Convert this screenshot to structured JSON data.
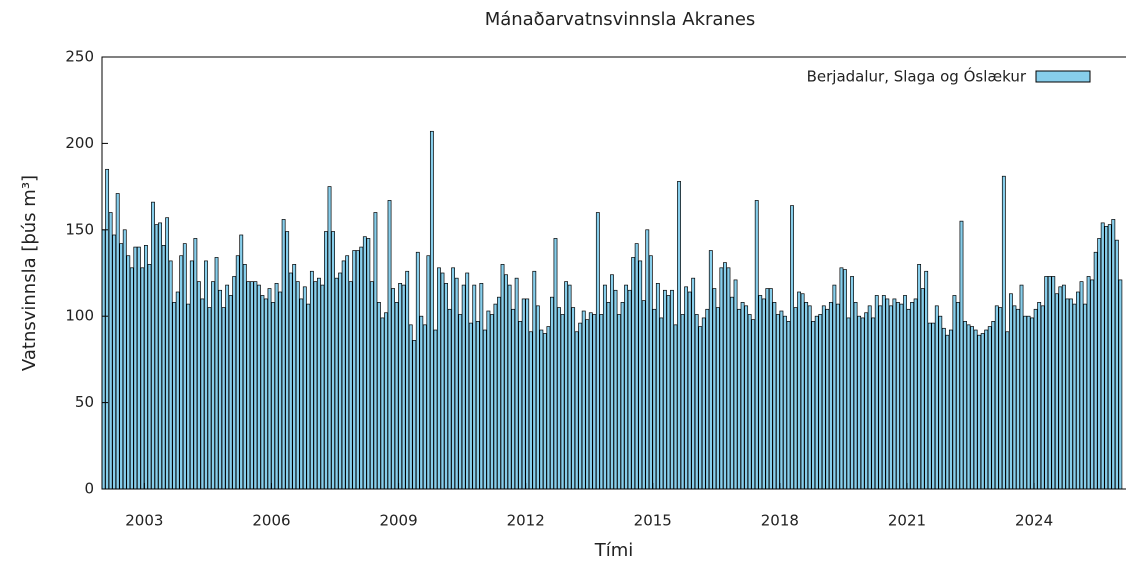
{
  "chart_data": {
    "type": "bar",
    "title": "Mánaðarvatnsvinnsla Akranes",
    "x_label": "Tími",
    "y_label": "Vatnsvinnsla [þús m³]",
    "xlim": [
      2002,
      2026.17
    ],
    "xticks": [
      2003,
      2006,
      2009,
      2012,
      2015,
      2018,
      2021,
      2024
    ],
    "ylim": [
      0,
      250
    ],
    "yticks": [
      0,
      50,
      100,
      150,
      200,
      250
    ],
    "legend": "top-right",
    "x": [
      2002,
      2002.083,
      2002.167,
      2002.25,
      2002.333,
      2002.417,
      2002.5,
      2002.583,
      2002.667,
      2002.75,
      2002.833,
      2002.917,
      2003,
      2003.083,
      2003.167,
      2003.25,
      2003.333,
      2003.417,
      2003.5,
      2003.583,
      2003.667,
      2003.75,
      2003.833,
      2003.917,
      2004,
      2004.083,
      2004.167,
      2004.25,
      2004.333,
      2004.417,
      2004.5,
      2004.583,
      2004.667,
      2004.75,
      2004.833,
      2004.917,
      2005,
      2005.083,
      2005.167,
      2005.25,
      2005.333,
      2005.417,
      2005.5,
      2005.583,
      2005.667,
      2005.75,
      2005.833,
      2005.917,
      2006,
      2006.083,
      2006.167,
      2006.25,
      2006.333,
      2006.417,
      2006.5,
      2006.583,
      2006.667,
      2006.75,
      2006.833,
      2006.917,
      2007,
      2007.083,
      2007.167,
      2007.25,
      2007.333,
      2007.417,
      2007.5,
      2007.583,
      2007.667,
      2007.75,
      2007.833,
      2007.917,
      2008,
      2008.083,
      2008.167,
      2008.25,
      2008.333,
      2008.417,
      2008.5,
      2008.583,
      2008.667,
      2008.75,
      2008.833,
      2008.917,
      2009,
      2009.083,
      2009.167,
      2009.25,
      2009.333,
      2009.417,
      2009.5,
      2009.583,
      2009.667,
      2009.75,
      2009.833,
      2009.917,
      2010,
      2010.083,
      2010.167,
      2010.25,
      2010.333,
      2010.417,
      2010.5,
      2010.583,
      2010.667,
      2010.75,
      2010.833,
      2010.917,
      2011,
      2011.083,
      2011.167,
      2011.25,
      2011.333,
      2011.417,
      2011.5,
      2011.583,
      2011.667,
      2011.75,
      2011.833,
      2011.917,
      2012,
      2012.083,
      2012.167,
      2012.25,
      2012.333,
      2012.417,
      2012.5,
      2012.583,
      2012.667,
      2012.75,
      2012.833,
      2012.917,
      2013,
      2013.083,
      2013.167,
      2013.25,
      2013.333,
      2013.417,
      2013.5,
      2013.583,
      2013.667,
      2013.75,
      2013.833,
      2013.917,
      2014,
      2014.083,
      2014.167,
      2014.25,
      2014.333,
      2014.417,
      2014.5,
      2014.583,
      2014.667,
      2014.75,
      2014.833,
      2014.917,
      2015,
      2015.083,
      2015.167,
      2015.25,
      2015.333,
      2015.417,
      2015.5,
      2015.583,
      2015.667,
      2015.75,
      2015.833,
      2015.917,
      2016,
      2016.083,
      2016.167,
      2016.25,
      2016.333,
      2016.417,
      2016.5,
      2016.583,
      2016.667,
      2016.75,
      2016.833,
      2016.917,
      2017,
      2017.083,
      2017.167,
      2017.25,
      2017.333,
      2017.417,
      2017.5,
      2017.583,
      2017.667,
      2017.75,
      2017.833,
      2017.917,
      2018,
      2018.083,
      2018.167,
      2018.25,
      2018.333,
      2018.417,
      2018.5,
      2018.583,
      2018.667,
      2018.75,
      2018.833,
      2018.917,
      2019,
      2019.083,
      2019.167,
      2019.25,
      2019.333,
      2019.417,
      2019.5,
      2019.583,
      2019.667,
      2019.75,
      2019.833,
      2019.917,
      2020,
      2020.083,
      2020.167,
      2020.25,
      2020.333,
      2020.417,
      2020.5,
      2020.583,
      2020.667,
      2020.75,
      2020.833,
      2020.917,
      2021,
      2021.083,
      2021.167,
      2021.25,
      2021.333,
      2021.417,
      2021.5,
      2021.583,
      2021.667,
      2021.75,
      2021.833,
      2021.917,
      2022,
      2022.083,
      2022.167,
      2022.25,
      2022.333,
      2022.417,
      2022.5,
      2022.583,
      2022.667,
      2022.75,
      2022.833,
      2022.917,
      2023,
      2023.083,
      2023.167,
      2023.25,
      2023.333,
      2023.417,
      2023.5,
      2023.583,
      2023.667,
      2023.75,
      2023.833,
      2023.917,
      2024,
      2024.083,
      2024.167,
      2024.25,
      2024.333,
      2024.417,
      2024.5,
      2024.583,
      2024.667,
      2024.75,
      2024.833,
      2024.917,
      2025,
      2025.083,
      2025.167,
      2025.25,
      2025.333,
      2025.417,
      2025.5,
      2025.583,
      2025.667,
      2025.75,
      2025.833,
      2025.917,
      2026
    ],
    "series": [
      {
        "name": "Berjadalur, Slaga og Óslækur",
        "color": "#87ceeb",
        "values": [
          150,
          185,
          160,
          147,
          171,
          142,
          150,
          135,
          128,
          140,
          140,
          128,
          141,
          130,
          166,
          153,
          154,
          141,
          157,
          132,
          108,
          114,
          135,
          142,
          107,
          132,
          145,
          120,
          110,
          132,
          105,
          120,
          134,
          115,
          105,
          118,
          112,
          123,
          135,
          147,
          130,
          120,
          120,
          120,
          118,
          112,
          110,
          116,
          108,
          119,
          114,
          156,
          149,
          125,
          130,
          120,
          110,
          117,
          107,
          126,
          120,
          122,
          118,
          149,
          175,
          149,
          122,
          125,
          132,
          135,
          120,
          138,
          138,
          140,
          146,
          145,
          120,
          160,
          108,
          99,
          102,
          167,
          116,
          108,
          119,
          118,
          126,
          95,
          86,
          137,
          100,
          95,
          135,
          207,
          92,
          128,
          125,
          119,
          104,
          128,
          122,
          101,
          118,
          125,
          96,
          118,
          97,
          119,
          92,
          103,
          101,
          107,
          111,
          130,
          124,
          118,
          104,
          122,
          97,
          110,
          110,
          91,
          126,
          106,
          92,
          90,
          94,
          111,
          145,
          105,
          101,
          120,
          118,
          105,
          91,
          96,
          103,
          98,
          102,
          101,
          160,
          101,
          118,
          108,
          124,
          115,
          101,
          108,
          118,
          115,
          134,
          142,
          132,
          109,
          150,
          135,
          104,
          119,
          99,
          115,
          112,
          115,
          95,
          178,
          101,
          117,
          114,
          122,
          101,
          94,
          99,
          104,
          138,
          116,
          105,
          128,
          131,
          128,
          111,
          121,
          104,
          108,
          106,
          101,
          98,
          167,
          112,
          110,
          116,
          116,
          108,
          101,
          103,
          100,
          97,
          164,
          105,
          114,
          113,
          108,
          106,
          97,
          100,
          101,
          106,
          104,
          108,
          118,
          107,
          128,
          127,
          99,
          123,
          108,
          100,
          99,
          102,
          106,
          99,
          112,
          106,
          112,
          110,
          106,
          110,
          108,
          107,
          112,
          104,
          108,
          110,
          130,
          116,
          126,
          96,
          96,
          106,
          100,
          93,
          89,
          92,
          112,
          108,
          155,
          97,
          95,
          94,
          92,
          89,
          90,
          92,
          94,
          97,
          106,
          105,
          181,
          91,
          113,
          106,
          104,
          118,
          100,
          100,
          99,
          104,
          108,
          106,
          123,
          123,
          123,
          113,
          117,
          118,
          110,
          110,
          107,
          114,
          120,
          107,
          123,
          121,
          137,
          145,
          154,
          152,
          153,
          156,
          144,
          121
        ]
      }
    ]
  }
}
